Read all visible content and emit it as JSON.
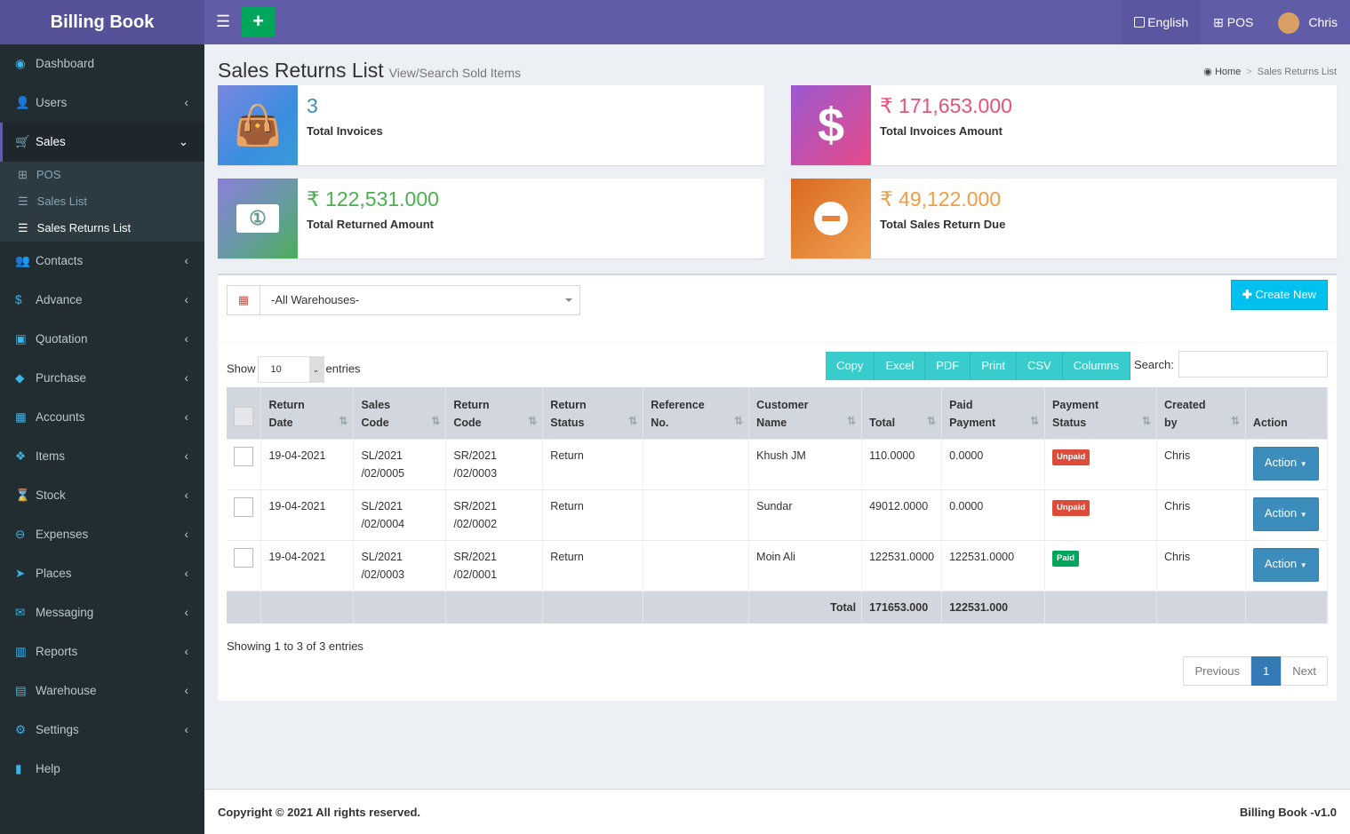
{
  "app": {
    "title": "Billing Book"
  },
  "topnav": {
    "language": "English",
    "pos": "POS",
    "user": "Chris"
  },
  "sidebar": {
    "items": [
      {
        "label": "Dashboard",
        "icon": "dashboard-icon",
        "glyph": "◉",
        "chev": ""
      },
      {
        "label": "Users",
        "icon": "user-plus-icon",
        "glyph": "👤",
        "chev": "‹"
      },
      {
        "label": "Sales",
        "icon": "cart-icon",
        "glyph": "🛒",
        "chev": "⌄"
      },
      {
        "label": "Contacts",
        "icon": "users-icon",
        "glyph": "👥",
        "chev": "‹"
      },
      {
        "label": "Advance",
        "icon": "dollar-icon",
        "glyph": "$",
        "chev": "‹"
      },
      {
        "label": "Quotation",
        "icon": "calendar-plus-icon",
        "glyph": "▣",
        "chev": "‹"
      },
      {
        "label": "Purchase",
        "icon": "cube-icon",
        "glyph": "◆",
        "chev": "‹"
      },
      {
        "label": "Accounts",
        "icon": "th-icon",
        "glyph": "▦",
        "chev": "‹"
      },
      {
        "label": "Items",
        "icon": "cubes-icon",
        "glyph": "❖",
        "chev": "‹"
      },
      {
        "label": "Stock",
        "icon": "hourglass-icon",
        "glyph": "⌛",
        "chev": "‹"
      },
      {
        "label": "Expenses",
        "icon": "minus-circle-icon",
        "glyph": "⊖",
        "chev": "‹"
      },
      {
        "label": "Places",
        "icon": "paper-plane-icon",
        "glyph": "➤",
        "chev": "‹"
      },
      {
        "label": "Messaging",
        "icon": "envelope-icon",
        "glyph": "✉",
        "chev": "‹"
      },
      {
        "label": "Reports",
        "icon": "bar-chart-icon",
        "glyph": "▥",
        "chev": "‹"
      },
      {
        "label": "Warehouse",
        "icon": "building-icon",
        "glyph": "▤",
        "chev": "‹"
      },
      {
        "label": "Settings",
        "icon": "cogs-icon",
        "glyph": "⚙",
        "chev": "‹"
      },
      {
        "label": "Help",
        "icon": "book-icon",
        "glyph": "▮",
        "chev": ""
      }
    ],
    "sub": [
      {
        "label": "POS",
        "glyph": "⊞"
      },
      {
        "label": "Sales List",
        "glyph": "☰"
      },
      {
        "label": "Sales Returns List",
        "glyph": "☰"
      }
    ]
  },
  "page": {
    "title": "Sales Returns List",
    "subtitle": "View/Search Sold Items",
    "breadcrumb": [
      "Home",
      "Sales Returns List"
    ]
  },
  "stats": [
    {
      "value": "3",
      "label": "Total Invoices",
      "color": "#3c8dbc"
    },
    {
      "value": "₹ 171,653.000",
      "label": "Total Invoices Amount",
      "color": "#e8517a"
    },
    {
      "value": "₹ 122,531.000",
      "label": "Total Returned Amount",
      "color": "#4caf50"
    },
    {
      "value": "₹ 49,122.000",
      "label": "Total Sales Return Due",
      "color": "#f39c45"
    }
  ],
  "filter": {
    "warehouse": "-All Warehouses-",
    "create": "Create New"
  },
  "table_controls": {
    "show": "Show",
    "entries": "entries",
    "length": "10",
    "search": "Search:",
    "buttons": [
      "Copy",
      "Excel",
      "PDF",
      "Print",
      "CSV",
      "Columns"
    ]
  },
  "table": {
    "headers": [
      [
        "Return",
        "Date"
      ],
      [
        "Sales",
        "Code"
      ],
      [
        "Return",
        "Code"
      ],
      [
        "Return",
        "Status"
      ],
      [
        "Reference",
        "No."
      ],
      [
        "Customer",
        "Name"
      ],
      [
        "",
        "Total"
      ],
      [
        "Paid",
        "Payment"
      ],
      [
        "Payment",
        "Status"
      ],
      [
        "Created",
        "by"
      ],
      [
        "",
        "Action"
      ]
    ],
    "rows": [
      {
        "date": "19-04-2021",
        "sales": [
          "SL/2021",
          "/02/0005"
        ],
        "ret": [
          "SR/2021",
          "/02/0003"
        ],
        "status": "Return",
        "ref": "",
        "customer": "Khush JM",
        "total": "110.0000",
        "paid": "0.0000",
        "pstatus": "Unpaid",
        "by": "Chris",
        "action": "Action"
      },
      {
        "date": "19-04-2021",
        "sales": [
          "SL/2021",
          "/02/0004"
        ],
        "ret": [
          "SR/2021",
          "/02/0002"
        ],
        "status": "Return",
        "ref": "",
        "customer": "Sundar",
        "total": "49012.0000",
        "paid": "0.0000",
        "pstatus": "Unpaid",
        "by": "Chris",
        "action": "Action"
      },
      {
        "date": "19-04-2021",
        "sales": [
          "SL/2021",
          "/02/0003"
        ],
        "ret": [
          "SR/2021",
          "/02/0001"
        ],
        "status": "Return",
        "ref": "",
        "customer": "Moin Ali",
        "total": "122531.0000",
        "paid": "122531.0000",
        "pstatus": "Paid",
        "by": "Chris",
        "action": "Action"
      }
    ],
    "footer": {
      "label": "Total",
      "total": "171653.000",
      "paid": "122531.000"
    }
  },
  "info": "Showing 1 to 3 of 3 entries",
  "pagination": {
    "prev": "Previous",
    "page": "1",
    "next": "Next"
  },
  "footer": {
    "copyright": "Copyright © 2021 All rights reserved.",
    "version": "Billing Book -v1.0"
  }
}
